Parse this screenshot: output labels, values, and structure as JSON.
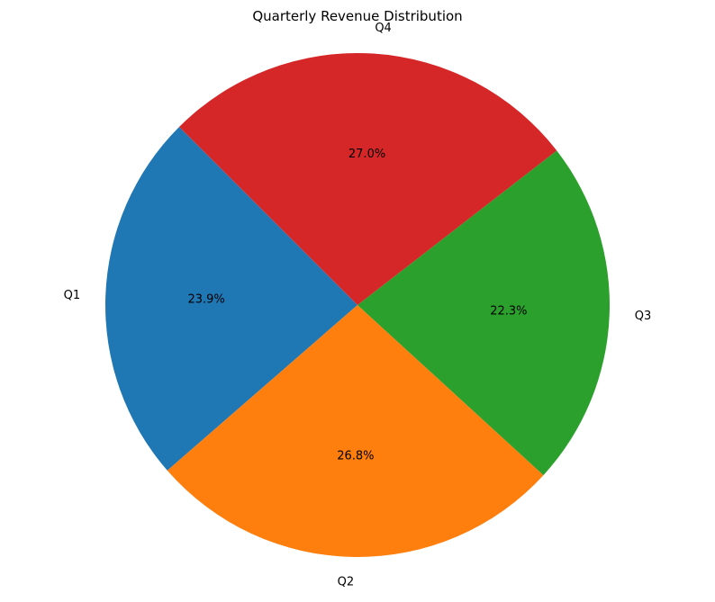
{
  "chart_data": {
    "type": "pie",
    "title": "Quarterly Revenue Distribution",
    "categories": [
      "Q1",
      "Q2",
      "Q3",
      "Q4"
    ],
    "values": [
      23.9,
      26.8,
      22.3,
      27.0
    ],
    "percent_labels": [
      "23.9%",
      "26.8%",
      "22.3%",
      "27.0%"
    ],
    "colors": [
      "#1f77b4",
      "#ff7f0e",
      "#2ca02c",
      "#d62728"
    ],
    "start_angle_deg": 135,
    "direction": "counterclockwise",
    "legend": "none"
  }
}
